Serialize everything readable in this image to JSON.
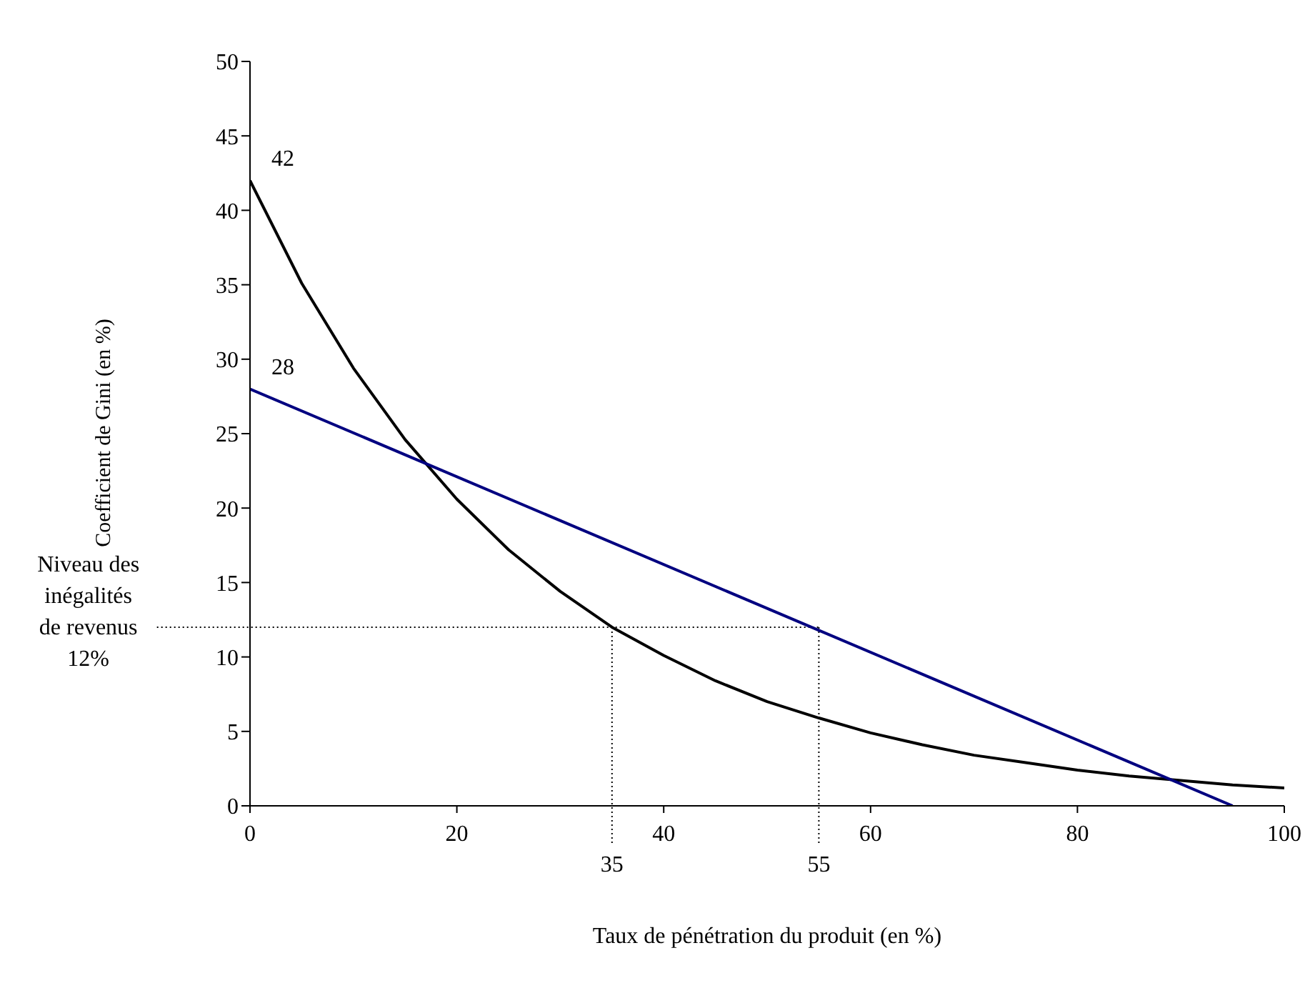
{
  "chart_data": {
    "type": "line",
    "xlabel": "Taux de pénétration du produit (en %)",
    "ylabel": "Coefficient de Gini (en %)",
    "series": [
      {
        "color": "#000000",
        "x": [
          0,
          5,
          10,
          15,
          20,
          25,
          30,
          35,
          40,
          45,
          50,
          55,
          60,
          65,
          70,
          75,
          80,
          85,
          90,
          95,
          100
        ],
        "values": [
          42,
          35.1,
          29.4,
          24.6,
          20.6,
          17.2,
          14.4,
          12,
          10.1,
          8.4,
          7,
          5.9,
          4.9,
          4.1,
          3.4,
          2.9,
          2.4,
          2,
          1.7,
          1.4,
          1.2
        ]
      },
      {
        "color": "#000080",
        "x": [
          0,
          95
        ],
        "values": [
          28,
          0
        ]
      }
    ],
    "xlim": [
      0,
      100
    ],
    "xticks": [
      0,
      20,
      40,
      60,
      80,
      100
    ],
    "ylim": [
      0,
      50
    ],
    "yticks": [
      0,
      5,
      10,
      15,
      20,
      25,
      30,
      35,
      40,
      45,
      50
    ],
    "annotations": [
      {
        "text": "42",
        "x": 0,
        "y": 42
      },
      {
        "text": "28",
        "x": 0,
        "y": 28
      }
    ],
    "ref_lines": [
      {
        "axis": "y",
        "value": 12,
        "label": "Niveau des inégalités de revenus 12%",
        "line_style": "dotted"
      },
      {
        "axis": "x",
        "value": 35,
        "label": "35",
        "line_style": "dotted"
      },
      {
        "axis": "x",
        "value": 55,
        "label": "55",
        "line_style": "dotted"
      }
    ],
    "grid": false,
    "marker": "none",
    "line_style": "solid"
  }
}
